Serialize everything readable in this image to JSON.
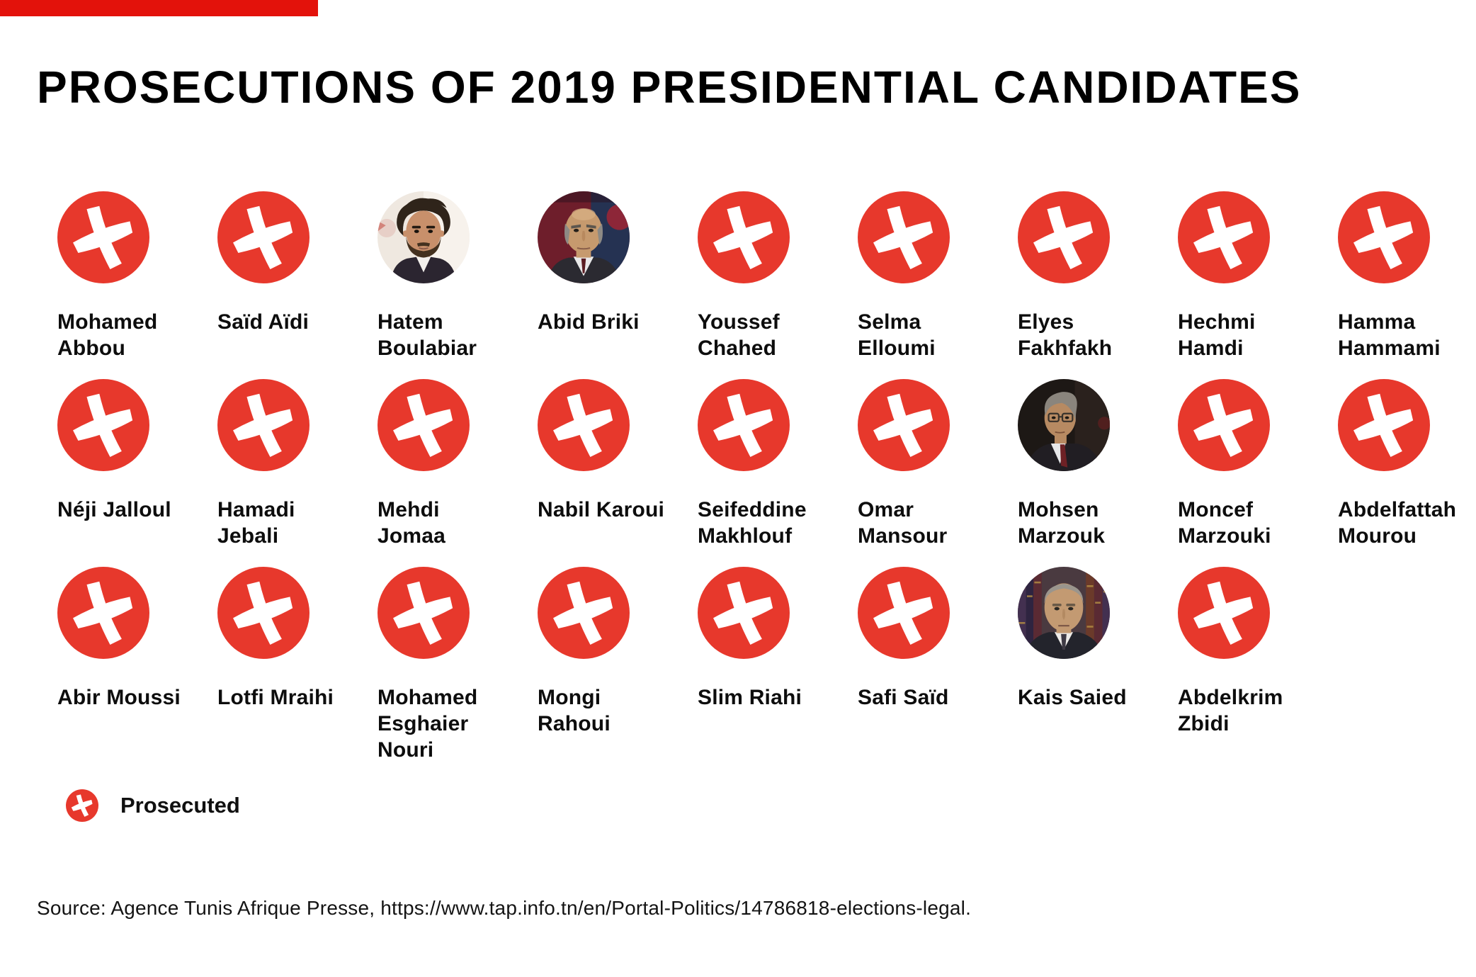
{
  "title": "PROSECUTIONS OF 2019 PRESIDENTIAL CANDIDATES",
  "legend": {
    "label": "Prosecuted",
    "icon": "prosecuted-x-icon"
  },
  "source": "Source: Agence Tunis Afrique Presse, https://www.tap.info.tn/en/Portal-Politics/14786818-elections-legal.",
  "colors": {
    "prosecuted_red": "#e7382c",
    "brand_bar_red": "#e3120b",
    "text_black": "#0d0d0d"
  },
  "rows": [
    [
      {
        "name": "Mohamed Abbou",
        "lines": [
          "Mohamed",
          "Abbou"
        ],
        "prosecuted": true
      },
      {
        "name": "Saïd Aïdi",
        "lines": [
          "Saïd Aïdi"
        ],
        "prosecuted": true
      },
      {
        "name": "Hatem Boulabiar",
        "lines": [
          "Hatem",
          "Boulabiar"
        ],
        "prosecuted": false,
        "photo": {
          "variant": "boulabiar",
          "bg": "#efe8e0",
          "bg_alt": "#f7f2ec",
          "skin": "#c8906b",
          "hair": "#2f241a",
          "facial_hair": "#44311f",
          "suit": "#2b2530",
          "shirt": "#f3f0ec"
        }
      },
      {
        "name": "Abid Briki",
        "lines": [
          "Abid Briki"
        ],
        "prosecuted": false,
        "photo": {
          "variant": "briki",
          "bg": "#6e1e2b",
          "bg_alt": "#253252",
          "skin": "#c69a6e",
          "hair": "#8d8a85",
          "suit": "#2b2a31",
          "shirt": "#e9e9ea",
          "tie": "#5a1c22"
        }
      },
      {
        "name": "Youssef Chahed",
        "lines": [
          "Youssef",
          "Chahed"
        ],
        "prosecuted": true
      },
      {
        "name": "Selma Elloumi",
        "lines": [
          "Selma",
          "Elloumi"
        ],
        "prosecuted": true
      },
      {
        "name": "Elyes Fakhfakh",
        "lines": [
          "Elyes",
          "Fakhfakh"
        ],
        "prosecuted": true
      },
      {
        "name": "Hechmi Hamdi",
        "lines": [
          "Hechmi",
          "Hamdi"
        ],
        "prosecuted": true
      },
      {
        "name": "Hamma Hammami",
        "lines": [
          "Hamma",
          "Hammami"
        ],
        "prosecuted": true
      }
    ],
    [
      {
        "name": "Néji Jalloul",
        "lines": [
          "Néji Jalloul"
        ],
        "prosecuted": true
      },
      {
        "name": "Hamadi Jebali",
        "lines": [
          "Hamadi",
          "Jebali"
        ],
        "prosecuted": true
      },
      {
        "name": "Mehdi Jomaa",
        "lines": [
          "Mehdi",
          "Jomaa"
        ],
        "prosecuted": true
      },
      {
        "name": "Nabil Karoui",
        "lines": [
          "Nabil Karoui"
        ],
        "prosecuted": true
      },
      {
        "name": "Seifeddine Makhlouf",
        "lines": [
          "Seifeddine",
          "Makhlouf"
        ],
        "prosecuted": true
      },
      {
        "name": "Omar Mansour",
        "lines": [
          "Omar",
          "Mansour"
        ],
        "prosecuted": true
      },
      {
        "name": "Mohsen Marzouk",
        "lines": [
          "Mohsen",
          "Marzouk"
        ],
        "prosecuted": false,
        "photo": {
          "variant": "marzouk",
          "bg": "#1d1815",
          "bg_alt": "#2a211d",
          "skin": "#b78a62",
          "hair": "#8a857d",
          "suit": "#211e23",
          "shirt": "#e7e7e9",
          "tie": "#6d2125"
        }
      },
      {
        "name": "Moncef Marzouki",
        "lines": [
          "Moncef",
          "Marzouki"
        ],
        "prosecuted": true
      },
      {
        "name": "Abdelfattah Mourou",
        "lines": [
          "Abdelfattah",
          "Mourou"
        ],
        "prosecuted": true
      }
    ],
    [
      {
        "name": "Abir Moussi",
        "lines": [
          "Abir Moussi"
        ],
        "prosecuted": true
      },
      {
        "name": "Lotfi Mraihi",
        "lines": [
          "Lotfi Mraihi"
        ],
        "prosecuted": true
      },
      {
        "name": "Mohamed Esghaier Nouri",
        "lines": [
          "Mohamed",
          "Esghaier",
          "Nouri"
        ],
        "prosecuted": true
      },
      {
        "name": "Mongi Rahoui",
        "lines": [
          "Mongi",
          "Rahoui"
        ],
        "prosecuted": true
      },
      {
        "name": "Slim Riahi",
        "lines": [
          "Slim Riahi"
        ],
        "prosecuted": true
      },
      {
        "name": "Safi Saïd",
        "lines": [
          "Safi Saïd"
        ],
        "prosecuted": true
      },
      {
        "name": "Kais Saied",
        "lines": [
          "Kais Saied"
        ],
        "prosecuted": false,
        "photo": {
          "variant": "saied",
          "bg": "#4a3a40",
          "bg_alt": "#5f4a38",
          "skin": "#c39a72",
          "hair": "#9a958d",
          "suit": "#23242c",
          "shirt": "#edebe8",
          "tie": "#3e3a44",
          "shelf_gold": "#b08a44",
          "book1": "#433050",
          "book2": "#5a2a33",
          "book3": "#6b3a2a",
          "book4": "#2e2440"
        }
      },
      {
        "name": "Abdelkrim Zbidi",
        "lines": [
          "Abdelkrim",
          "Zbidi"
        ],
        "prosecuted": true
      }
    ]
  ],
  "chart_data": {
    "type": "table",
    "title": "PROSECUTIONS OF 2019 PRESIDENTIAL CANDIDATES",
    "legend_entries": [
      "Prosecuted"
    ],
    "columns": [
      "candidate",
      "prosecuted"
    ],
    "rows": [
      [
        "Mohamed Abbou",
        true
      ],
      [
        "Saïd Aïdi",
        true
      ],
      [
        "Hatem Boulabiar",
        false
      ],
      [
        "Abid Briki",
        false
      ],
      [
        "Youssef Chahed",
        true
      ],
      [
        "Selma Elloumi",
        true
      ],
      [
        "Elyes Fakhfakh",
        true
      ],
      [
        "Hechmi Hamdi",
        true
      ],
      [
        "Hamma Hammami",
        true
      ],
      [
        "Néji Jalloul",
        true
      ],
      [
        "Hamadi Jebali",
        true
      ],
      [
        "Mehdi Jomaa",
        true
      ],
      [
        "Nabil Karoui",
        true
      ],
      [
        "Seifeddine Makhlouf",
        true
      ],
      [
        "Omar Mansour",
        true
      ],
      [
        "Mohsen Marzouk",
        false
      ],
      [
        "Moncef Marzouki",
        true
      ],
      [
        "Abdelfattah Mourou",
        true
      ],
      [
        "Abir Moussi",
        true
      ],
      [
        "Lotfi Mraihi",
        true
      ],
      [
        "Mohamed Esghaier Nouri",
        true
      ],
      [
        "Mongi Rahoui",
        true
      ],
      [
        "Slim Riahi",
        true
      ],
      [
        "Safi Saïd",
        true
      ],
      [
        "Kais Saied",
        false
      ],
      [
        "Abdelkrim Zbidi",
        true
      ]
    ],
    "notes": "Red brush-stroke X in circle = prosecuted; circular portrait photo = not prosecuted"
  }
}
